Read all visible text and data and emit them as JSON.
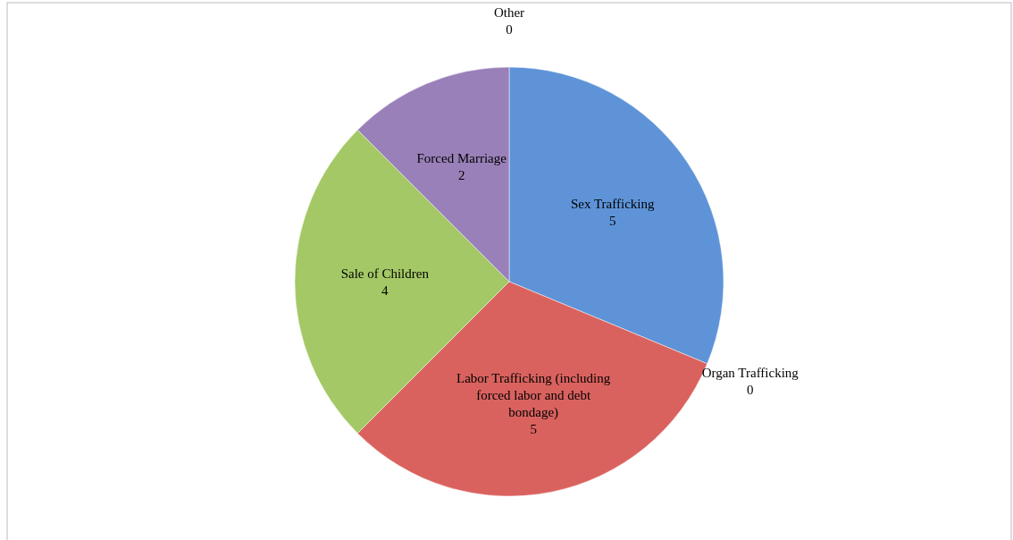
{
  "chart_data": {
    "type": "pie",
    "categories": [
      "Sex Trafficking",
      "Organ Trafficking",
      "Labor Trafficking (including forced labor and debt bondage)",
      "Sale of Children",
      "Forced Marriage",
      "Other"
    ],
    "values": [
      5,
      0,
      5,
      4,
      2,
      0
    ],
    "colors": [
      "#5e93d8",
      null,
      "#d9625f",
      "#a3c865",
      "#9a80b9",
      null
    ],
    "value_labels": [
      "5",
      "0",
      "5",
      "4",
      "2",
      "0"
    ]
  }
}
